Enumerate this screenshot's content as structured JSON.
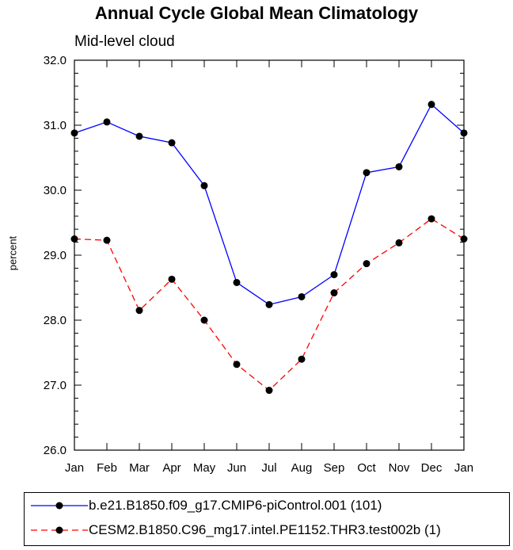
{
  "chart_data": {
    "type": "line",
    "title": "Annual Cycle Global Mean Climatology",
    "subtitle": "Mid-level cloud",
    "xlabel": "",
    "ylabel": "percent",
    "ylim": [
      26.0,
      32.0
    ],
    "yticks": [
      "26.0",
      "27.0",
      "28.0",
      "29.0",
      "30.0",
      "31.0",
      "32.0"
    ],
    "categories": [
      "Jan",
      "Feb",
      "Mar",
      "Apr",
      "May",
      "Jun",
      "Jul",
      "Aug",
      "Sep",
      "Oct",
      "Nov",
      "Dec",
      "Jan"
    ],
    "series": [
      {
        "name": "b.e21.B1850.f09_g17.CMIP6-piControl.001 (101)",
        "color": "#0000ff",
        "dash": "solid",
        "values": [
          30.88,
          31.05,
          30.83,
          30.73,
          30.07,
          28.58,
          28.24,
          28.36,
          28.7,
          30.27,
          30.36,
          31.32,
          30.88
        ]
      },
      {
        "name": "CESM2.B1850.C96_mg17.intel.PE1152.THR3.test002b (1)",
        "color": "#ff0000",
        "dash": "dashed",
        "values": [
          29.25,
          29.23,
          28.15,
          28.63,
          28.0,
          27.32,
          26.92,
          27.4,
          28.42,
          28.87,
          29.19,
          29.56,
          29.25
        ]
      }
    ],
    "grid": false,
    "legend_position": "bottom"
  }
}
